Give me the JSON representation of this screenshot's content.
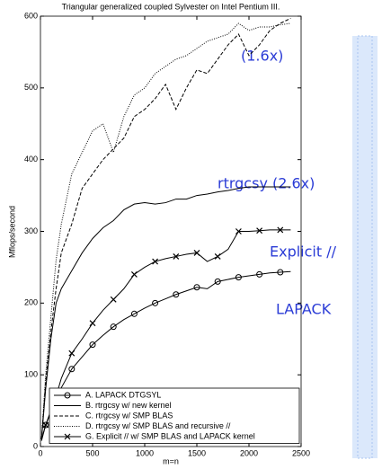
{
  "chart_data": {
    "type": "line",
    "title": "Triangular generalized coupled Sylvester on Intel Pentium III.",
    "xlabel": "m=n",
    "ylabel": "Mflops/second",
    "x": [
      10,
      50,
      100,
      150,
      200,
      300,
      400,
      500,
      600,
      700,
      800,
      900,
      1000,
      1100,
      1200,
      1300,
      1400,
      1500,
      1600,
      1700,
      1800,
      1900,
      2000,
      2100,
      2200,
      2300,
      2400
    ],
    "series": [
      {
        "name": "A. LAPACK DTGSYL",
        "color": "#000000",
        "style": "solid",
        "marker": "circle",
        "values": [
          10,
          30,
          48,
          65,
          82,
          108,
          125,
          142,
          155,
          167,
          177,
          185,
          193,
          200,
          206,
          212,
          217,
          222,
          220,
          230,
          233,
          236,
          238,
          240,
          242,
          243,
          244
        ]
      },
      {
        "name": "B. rtrgcsy w/ new kernel",
        "color": "#000000",
        "style": "solid",
        "marker": "none",
        "values": [
          10,
          80,
          150,
          200,
          220,
          245,
          270,
          290,
          305,
          315,
          330,
          338,
          340,
          338,
          340,
          345,
          345,
          350,
          352,
          355,
          357,
          360,
          362,
          362,
          362,
          362,
          362
        ]
      },
      {
        "name": "C. rtrgcsy w/ SMP BLAS",
        "color": "#000000",
        "style": "dashed",
        "marker": "none",
        "values": [
          10,
          90,
          160,
          220,
          270,
          310,
          360,
          380,
          400,
          415,
          430,
          460,
          470,
          485,
          505,
          470,
          500,
          525,
          520,
          540,
          560,
          575,
          545,
          560,
          580,
          590,
          597
        ]
      },
      {
        "name": "D. rtrgcsy w/ SMP BLAS and recursive //",
        "color": "#000000",
        "style": "dotted",
        "marker": "none",
        "values": [
          10,
          100,
          180,
          260,
          310,
          380,
          410,
          440,
          450,
          410,
          460,
          490,
          500,
          520,
          530,
          540,
          545,
          555,
          565,
          570,
          575,
          590,
          580,
          585,
          585,
          588,
          590
        ]
      },
      {
        "name": "G. Explicit // w/ SMP BLAS and LAPACK kernel",
        "color": "#000000",
        "style": "solid",
        "marker": "x",
        "values": [
          8,
          30,
          50,
          70,
          95,
          130,
          150,
          172,
          190,
          205,
          220,
          240,
          250,
          258,
          262,
          265,
          268,
          270,
          258,
          265,
          275,
          300,
          300,
          301,
          302,
          302,
          302
        ]
      }
    ],
    "xlim": [
      0,
      2500
    ],
    "xticks": [
      0,
      500,
      1000,
      1500,
      2000,
      2500
    ],
    "ylim": [
      0,
      600
    ],
    "yticks": [
      0,
      100,
      200,
      300,
      400,
      500,
      600
    ],
    "legend": "lower right",
    "annotations": [
      "(1.6x)",
      "rtrgcsy (2.6x)",
      "Explicit //",
      "LAPACK"
    ]
  }
}
